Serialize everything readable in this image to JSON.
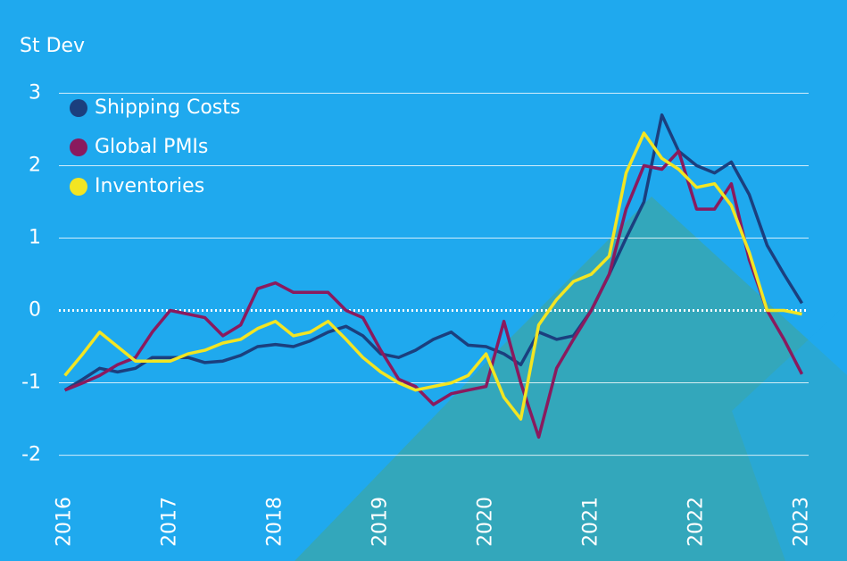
{
  "chart_data": {
    "type": "line",
    "y_label": "St Dev",
    "x": [
      2016,
      2016.17,
      2016.33,
      2016.5,
      2016.67,
      2016.83,
      2017,
      2017.17,
      2017.33,
      2017.5,
      2017.67,
      2017.83,
      2018,
      2018.17,
      2018.33,
      2018.5,
      2018.67,
      2018.83,
      2019,
      2019.17,
      2019.33,
      2019.5,
      2019.67,
      2019.83,
      2020,
      2020.17,
      2020.33,
      2020.5,
      2020.67,
      2020.83,
      2021,
      2021.17,
      2021.33,
      2021.5,
      2021.67,
      2021.83,
      2022,
      2022.17,
      2022.33,
      2022.5,
      2022.67,
      2022.83,
      2023
    ],
    "series": [
      {
        "name": "Shipping Costs",
        "color": "#1b3f7e",
        "values": [
          -1.1,
          -0.95,
          -0.8,
          -0.85,
          -0.8,
          -0.65,
          -0.65,
          -0.65,
          -0.72,
          -0.7,
          -0.62,
          -0.5,
          -0.47,
          -0.5,
          -0.42,
          -0.3,
          -0.22,
          -0.35,
          -0.6,
          -0.65,
          -0.55,
          -0.4,
          -0.3,
          -0.48,
          -0.5,
          -0.6,
          -0.75,
          -0.3,
          -0.4,
          -0.35,
          0.0,
          0.5,
          1.0,
          1.5,
          2.7,
          2.2,
          2.0,
          1.9,
          2.05,
          1.6,
          0.9,
          0.5,
          0.1
        ]
      },
      {
        "name": "Global PMIs",
        "color": "#8a1a5e",
        "values": [
          -1.1,
          -1.0,
          -0.9,
          -0.75,
          -0.65,
          -0.3,
          0.0,
          -0.05,
          -0.1,
          -0.35,
          -0.2,
          0.3,
          0.38,
          0.25,
          0.25,
          0.25,
          0.0,
          -0.1,
          -0.55,
          -0.95,
          -1.05,
          -1.3,
          -1.15,
          -1.1,
          -1.05,
          -0.15,
          -1.0,
          -1.75,
          -0.8,
          -0.4,
          0.0,
          0.5,
          1.4,
          2.0,
          1.95,
          2.2,
          1.4,
          1.4,
          1.75,
          0.7,
          0.0,
          -0.4,
          -0.88
        ]
      },
      {
        "name": "Inventories",
        "color": "#f3e522",
        "values": [
          -0.9,
          -0.6,
          -0.3,
          -0.5,
          -0.7,
          -0.7,
          -0.7,
          -0.6,
          -0.55,
          -0.45,
          -0.4,
          -0.25,
          -0.15,
          -0.35,
          -0.3,
          -0.15,
          -0.4,
          -0.65,
          -0.85,
          -1.0,
          -1.1,
          -1.05,
          -1.0,
          -0.9,
          -0.6,
          -1.2,
          -1.5,
          -0.2,
          0.15,
          0.4,
          0.5,
          0.75,
          1.9,
          2.45,
          2.1,
          1.95,
          1.7,
          1.75,
          1.45,
          0.8,
          0.0,
          0.0,
          -0.05
        ]
      }
    ],
    "xlim": [
      2015.96,
      2023.03
    ],
    "xticks": [
      2016,
      2017,
      2018,
      2019,
      2020,
      2021,
      2022,
      2023
    ],
    "ylim": [
      -2.4,
      3.4
    ],
    "yticks": [
      -2,
      -1,
      0,
      1,
      2,
      3
    ],
    "grid": true
  }
}
